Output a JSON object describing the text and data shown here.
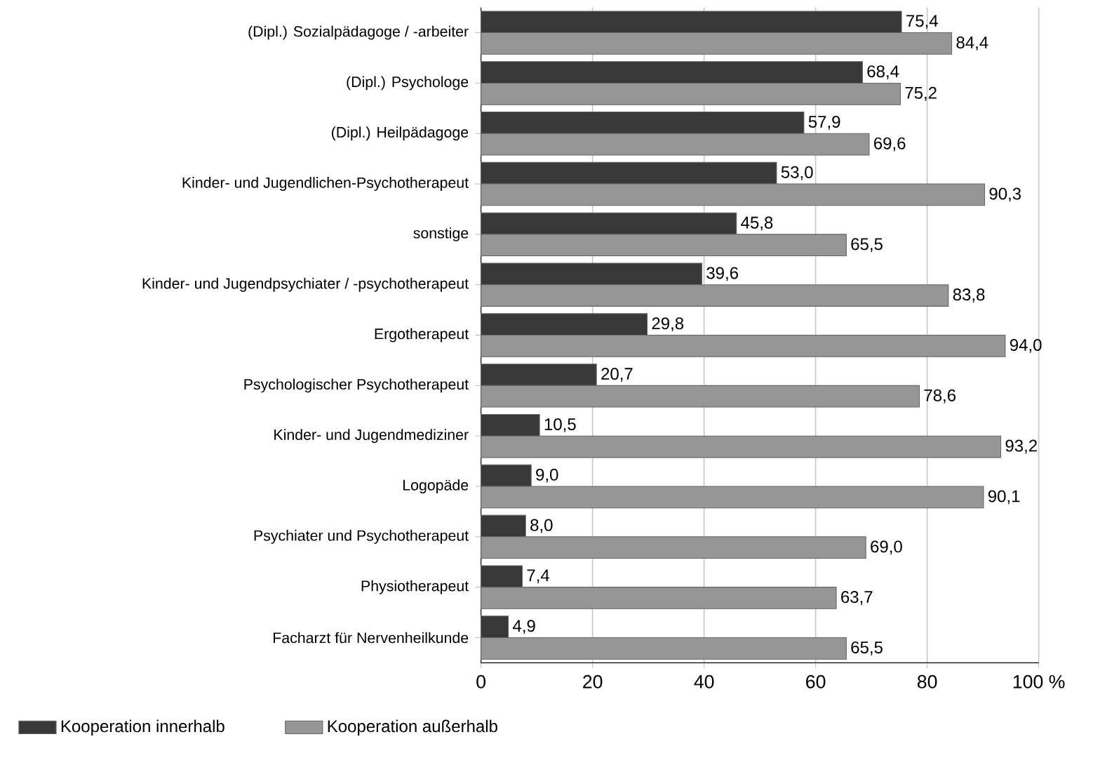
{
  "chart_data": {
    "type": "bar",
    "orientation": "horizontal",
    "categories": [
      "(Dipl.) Sozialpädagoge / -arbeiter",
      "(Dipl.) Psychologe",
      "(Dipl.) Heilpädagoge",
      "Kinder- und Jugendlichen-Psychotherapeut",
      "sonstige",
      "Kinder- und Jugendpsychiater / -psychotherapeut",
      "Ergotherapeut",
      "Psychologischer Psychotherapeut",
      "Kinder- und Jugendmediziner",
      "Logopäde",
      "Psychiater und Psychotherapeut",
      "Physiotherapeut",
      "Facharzt für Nervenheilkunde"
    ],
    "series": [
      {
        "name": "Kooperation innerhalb",
        "color": "#383838",
        "values": [
          75.4,
          68.4,
          57.9,
          53.0,
          45.8,
          39.6,
          29.8,
          20.7,
          10.5,
          9.0,
          8.0,
          7.4,
          4.9
        ],
        "value_labels": [
          "75,4",
          "68,4",
          "57,9",
          "53,0",
          "45,8",
          "39,6",
          "29,8",
          "20,7",
          "10,5",
          "9,0",
          "8,0",
          "7,4",
          "4,9"
        ]
      },
      {
        "name": "Kooperation außerhalb",
        "color": "#969696",
        "values": [
          84.4,
          75.2,
          69.6,
          90.3,
          65.5,
          83.8,
          94.0,
          78.6,
          93.2,
          90.1,
          69.0,
          63.7,
          65.5
        ],
        "value_labels": [
          "84,4",
          "75,2",
          "69,6",
          "90,3",
          "65,5",
          "83,8",
          "94,0",
          "78,6",
          "93,2",
          "90,1",
          "69,0",
          "63,7",
          "65,5"
        ]
      }
    ],
    "xlim": [
      0,
      100
    ],
    "xticks": [
      0,
      20,
      40,
      60,
      80,
      {
        "value": 100,
        "label": "100 %"
      }
    ],
    "grid": "x",
    "legend": "bottom"
  }
}
